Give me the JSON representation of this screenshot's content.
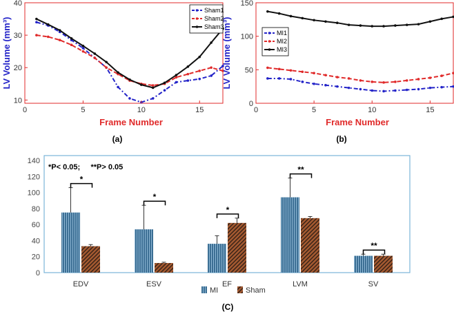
{
  "colors": {
    "blue": "#2323c8",
    "red": "#e02a2a",
    "black": "#111111",
    "mi_bar": "#3b6e93",
    "sham_bar": "#a55a31",
    "frame": "#7ab4d8"
  },
  "chart_data": [
    {
      "id": "a",
      "type": "line",
      "caption": "(a)",
      "xlabel": "Frame Number",
      "ylabel": "LV Volume (mm³)",
      "xlim": [
        0,
        17
      ],
      "ylim": [
        9,
        40
      ],
      "xticks": [
        "0",
        "5",
        "10",
        "15"
      ],
      "yticks": [
        "10",
        "20",
        "30",
        "40"
      ],
      "x": [
        1,
        2,
        3,
        4,
        5,
        6,
        7,
        8,
        9,
        10,
        11,
        12,
        13,
        14,
        15,
        16,
        17
      ],
      "series": [
        {
          "name": "Sham1",
          "color": "#2323c8",
          "style": "dashdot",
          "values": [
            34,
            33,
            31,
            28.5,
            26,
            23,
            20,
            14,
            10.5,
            9.3,
            10.5,
            13,
            15.5,
            16,
            16.5,
            17.5,
            20.5
          ]
        },
        {
          "name": "Sham2",
          "color": "#e02a2a",
          "style": "dashed",
          "values": [
            30,
            29.5,
            28.5,
            27,
            25,
            23,
            20,
            18,
            16,
            15,
            14.5,
            15,
            17,
            18,
            19,
            20,
            19
          ]
        },
        {
          "name": "Sham3",
          "color": "#111111",
          "style": "solid",
          "values": [
            35,
            33.3,
            31.5,
            29,
            26.7,
            24.3,
            21.7,
            18.5,
            16.3,
            14.7,
            13.8,
            15.3,
            17.7,
            20.3,
            23.3,
            27.7,
            32
          ]
        }
      ]
    },
    {
      "id": "b",
      "type": "line",
      "caption": "(b)",
      "xlabel": "Frame Number",
      "ylabel": "LV Volume (mm³)",
      "xlim": [
        0,
        17
      ],
      "ylim": [
        0,
        150
      ],
      "xticks": [
        "0",
        "5",
        "10",
        "15"
      ],
      "yticks": [
        "0",
        "50",
        "100",
        "150"
      ],
      "x": [
        1,
        2,
        3,
        4,
        5,
        6,
        7,
        8,
        9,
        10,
        11,
        12,
        13,
        14,
        15,
        16,
        17
      ],
      "series": [
        {
          "name": "MI1",
          "color": "#2323c8",
          "style": "dashdot",
          "values": [
            37,
            37,
            36,
            32,
            29,
            27,
            25,
            23,
            21,
            19,
            18,
            19,
            20,
            21,
            23,
            24,
            25
          ]
        },
        {
          "name": "MI2",
          "color": "#e02a2a",
          "style": "dashed",
          "values": [
            53,
            51,
            49,
            47,
            45,
            42,
            39,
            37,
            34,
            32,
            31,
            32,
            34,
            36,
            38,
            41,
            45
          ]
        },
        {
          "name": "MI3",
          "color": "#111111",
          "style": "solid",
          "values": [
            137,
            134,
            130,
            127,
            124,
            122,
            120,
            117,
            116,
            115,
            115,
            116,
            117,
            118,
            122,
            126,
            129
          ]
        }
      ]
    },
    {
      "id": "c",
      "type": "bar",
      "caption": "(C)",
      "note": "*P< 0.05;     **P> 0.05",
      "ylim": [
        0,
        140
      ],
      "yticks": [
        "0",
        "20",
        "40",
        "60",
        "80",
        "100",
        "120",
        "140"
      ],
      "categories": [
        "EDV",
        "ESV",
        "EF",
        "LVM",
        "SV"
      ],
      "series": [
        {
          "name": "MI",
          "color": "#3b6e93",
          "values": [
            75,
            54,
            36,
            94,
            21
          ],
          "errors": [
            31,
            30,
            10,
            24,
            2
          ]
        },
        {
          "name": "Sham",
          "color": "#a55a31",
          "values": [
            33,
            12,
            62,
            68,
            21
          ],
          "errors": [
            2,
            1,
            6,
            2,
            2
          ]
        }
      ],
      "significance": [
        "*",
        "*",
        "*",
        "**",
        "**"
      ]
    }
  ]
}
